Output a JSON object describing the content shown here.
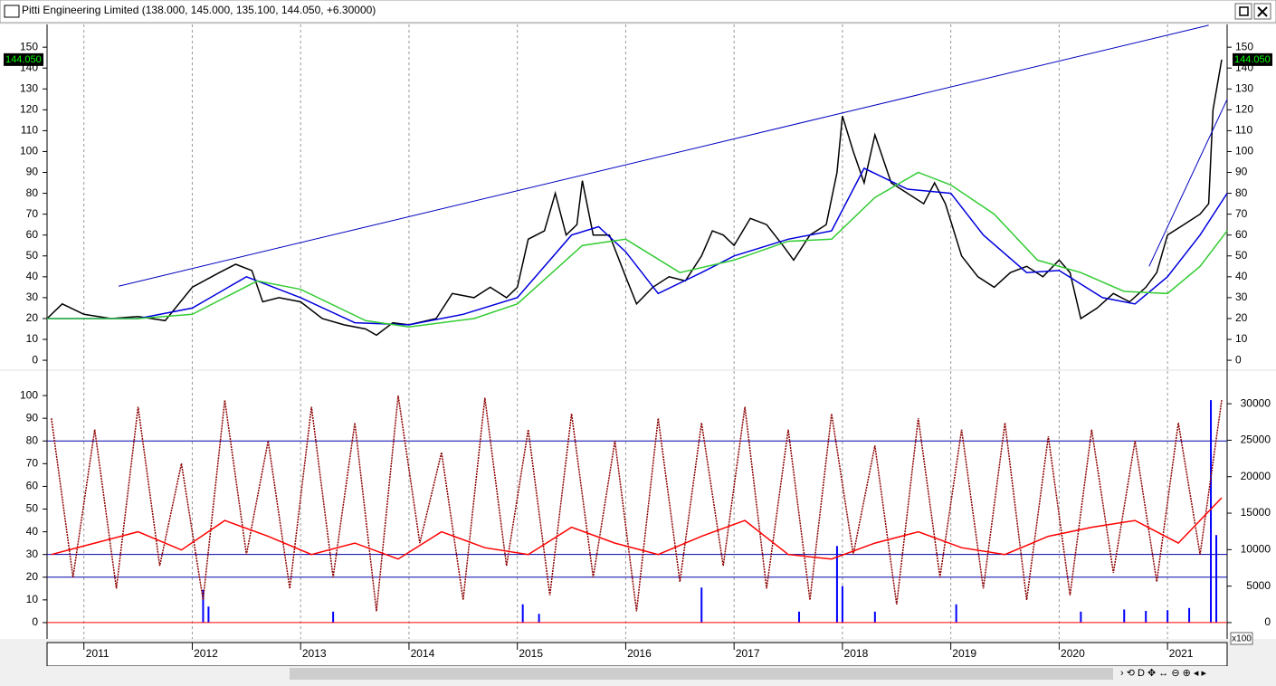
{
  "window_title": "Pitti Engineering Limited (138.000, 145.000, 135.100, 144.050, +6.30000)",
  "chart_data": [
    {
      "type": "line",
      "xlim": [
        2010.66,
        2021.55
      ],
      "xticks": [
        2011,
        2012,
        2013,
        2014,
        2015,
        2016,
        2017,
        2018,
        2019,
        2020,
        2021
      ],
      "ylim": [
        -4.3,
        160.9
      ],
      "yticks": [
        0,
        10,
        20,
        30,
        40,
        50,
        60,
        70,
        80,
        90,
        100,
        110,
        120,
        130,
        140,
        150
      ],
      "grid": true,
      "last_price": {
        "value": 144.05,
        "label": "144.050"
      },
      "series": [
        {
          "color": "#000000",
          "x": [
            2010.66,
            2010.8,
            2011.0,
            2011.25,
            2011.5,
            2011.75,
            2012.0,
            2012.25,
            2012.4,
            2012.55,
            2012.65,
            2012.8,
            2013.0,
            2013.2,
            2013.4,
            2013.6,
            2013.7,
            2013.85,
            2014.0,
            2014.25,
            2014.4,
            2014.6,
            2014.75,
            2014.9,
            2015.0,
            2015.1,
            2015.25,
            2015.35,
            2015.45,
            2015.55,
            2015.6,
            2015.7,
            2015.85,
            2016.0,
            2016.1,
            2016.25,
            2016.4,
            2016.55,
            2016.7,
            2016.8,
            2016.9,
            2017.0,
            2017.15,
            2017.3,
            2017.45,
            2017.55,
            2017.7,
            2017.85,
            2017.95,
            2018.0,
            2018.1,
            2018.2,
            2018.3,
            2018.45,
            2018.6,
            2018.75,
            2018.85,
            2018.95,
            2019.1,
            2019.25,
            2019.4,
            2019.55,
            2019.7,
            2019.85,
            2020.0,
            2020.1,
            2020.2,
            2020.35,
            2020.5,
            2020.65,
            2020.8,
            2020.9,
            2021.0,
            2021.15,
            2021.3,
            2021.38,
            2021.42,
            2021.5
          ],
          "values": [
            20,
            27,
            22,
            20,
            21,
            19,
            35,
            42,
            46,
            43,
            28,
            30,
            28,
            20,
            17,
            15,
            12,
            18,
            17,
            20,
            32,
            30,
            35,
            30,
            35,
            58,
            62,
            80,
            60,
            65,
            86,
            60,
            60,
            40,
            27,
            35,
            40,
            38,
            50,
            62,
            60,
            55,
            68,
            65,
            55,
            48,
            60,
            65,
            90,
            117,
            100,
            85,
            108,
            85,
            80,
            75,
            85,
            75,
            50,
            40,
            35,
            42,
            45,
            40,
            48,
            42,
            20,
            25,
            32,
            28,
            35,
            42,
            60,
            65,
            70,
            75,
            120,
            144.05
          ]
        },
        {
          "color": "#0000dd",
          "x": [
            2010.66,
            2011.5,
            2012.0,
            2012.5,
            2013.0,
            2013.5,
            2014.0,
            2014.5,
            2015.0,
            2015.5,
            2015.75,
            2016.0,
            2016.3,
            2016.7,
            2017.0,
            2017.5,
            2017.9,
            2018.2,
            2018.6,
            2019.0,
            2019.3,
            2019.7,
            2020.0,
            2020.4,
            2020.7,
            2021.0,
            2021.3,
            2021.55
          ],
          "values": [
            20,
            20,
            25,
            40,
            30,
            18,
            17,
            22,
            30,
            60,
            64,
            52,
            32,
            42,
            50,
            58,
            62,
            92,
            82,
            80,
            60,
            42,
            43,
            30,
            27,
            40,
            60,
            80
          ]
        },
        {
          "color": "#33cc33",
          "x": [
            2010.66,
            2011.5,
            2012.0,
            2012.6,
            2013.0,
            2013.6,
            2014.0,
            2014.6,
            2015.0,
            2015.6,
            2016.0,
            2016.5,
            2017.0,
            2017.5,
            2017.9,
            2018.3,
            2018.7,
            2019.0,
            2019.4,
            2019.8,
            2020.2,
            2020.6,
            2021.0,
            2021.3,
            2021.55
          ],
          "values": [
            20,
            20,
            22,
            38,
            34,
            19,
            16,
            20,
            27,
            55,
            58,
            42,
            48,
            57,
            58,
            78,
            90,
            84,
            70,
            48,
            42,
            33,
            32,
            45,
            62
          ]
        }
      ],
      "trendlines": [
        {
          "color": "#0000c0",
          "x": [
            2011.32,
            2021.38
          ],
          "y": [
            35.5,
            160.5
          ]
        },
        {
          "color": "#0000c0",
          "x": [
            2020.83,
            2021.55
          ],
          "y": [
            45,
            125
          ]
        }
      ]
    },
    {
      "type": "line",
      "xlim": [
        2010.66,
        2021.55
      ],
      "ylim": [
        -7.2,
        110.8
      ],
      "yticks": [
        0,
        10,
        20,
        30,
        40,
        50,
        60,
        70,
        80,
        90,
        100
      ],
      "y2lim": [
        -2241,
        34481
      ],
      "y2ticks": [
        0,
        5000,
        10000,
        15000,
        20000,
        25000,
        30000
      ],
      "y2_multiplier": "x100",
      "reference_lines": {
        "color": "#0000aa",
        "values": [
          80,
          30,
          20
        ]
      },
      "series": [
        {
          "color": "#0000ff",
          "kind": "bar",
          "axis": "y2",
          "x": [
            2012.1,
            2012.15,
            2013.3,
            2015.05,
            2015.2,
            2016.7,
            2017.6,
            2017.95,
            2018.0,
            2018.3,
            2019.05,
            2020.2,
            2020.6,
            2020.8,
            2021.0,
            2021.2,
            2021.4,
            2021.45
          ],
          "values": [
            4500,
            2200,
            1500,
            2500,
            1200,
            4800,
            1500,
            10500,
            5000,
            1500,
            2500,
            1500,
            1800,
            1600,
            1700,
            2000,
            30500,
            12000
          ]
        },
        {
          "color": "#8b0000",
          "dashed": true,
          "x": [
            2010.7,
            2010.9,
            2011.1,
            2011.3,
            2011.5,
            2011.7,
            2011.9,
            2012.1,
            2012.3,
            2012.5,
            2012.7,
            2012.9,
            2013.1,
            2013.3,
            2013.5,
            2013.7,
            2013.9,
            2014.1,
            2014.3,
            2014.5,
            2014.7,
            2014.9,
            2015.1,
            2015.3,
            2015.5,
            2015.7,
            2015.9,
            2016.1,
            2016.3,
            2016.5,
            2016.7,
            2016.9,
            2017.1,
            2017.3,
            2017.5,
            2017.7,
            2017.9,
            2018.1,
            2018.3,
            2018.5,
            2018.7,
            2018.9,
            2019.1,
            2019.3,
            2019.5,
            2019.7,
            2019.9,
            2020.1,
            2020.3,
            2020.5,
            2020.7,
            2020.9,
            2021.1,
            2021.3,
            2021.5
          ],
          "values": [
            90,
            20,
            85,
            15,
            95,
            25,
            70,
            10,
            98,
            30,
            80,
            15,
            95,
            20,
            88,
            5,
            100,
            35,
            75,
            10,
            99,
            25,
            85,
            12,
            92,
            20,
            80,
            5,
            90,
            18,
            88,
            25,
            95,
            15,
            85,
            10,
            92,
            30,
            78,
            8,
            90,
            20,
            85,
            15,
            88,
            10,
            82,
            12,
            85,
            22,
            80,
            18,
            88,
            30,
            98
          ]
        },
        {
          "color": "#ff0000",
          "x": [
            2010.7,
            2011.1,
            2011.5,
            2011.9,
            2012.3,
            2012.7,
            2013.1,
            2013.5,
            2013.9,
            2014.3,
            2014.7,
            2015.1,
            2015.5,
            2015.9,
            2016.3,
            2016.7,
            2017.1,
            2017.5,
            2017.9,
            2018.3,
            2018.7,
            2019.1,
            2019.5,
            2019.9,
            2020.3,
            2020.7,
            2021.1,
            2021.5
          ],
          "values": [
            30,
            35,
            40,
            32,
            45,
            38,
            30,
            35,
            28,
            40,
            33,
            30,
            42,
            35,
            30,
            38,
            45,
            30,
            28,
            35,
            40,
            33,
            30,
            38,
            42,
            45,
            35,
            55
          ]
        }
      ]
    }
  ]
}
